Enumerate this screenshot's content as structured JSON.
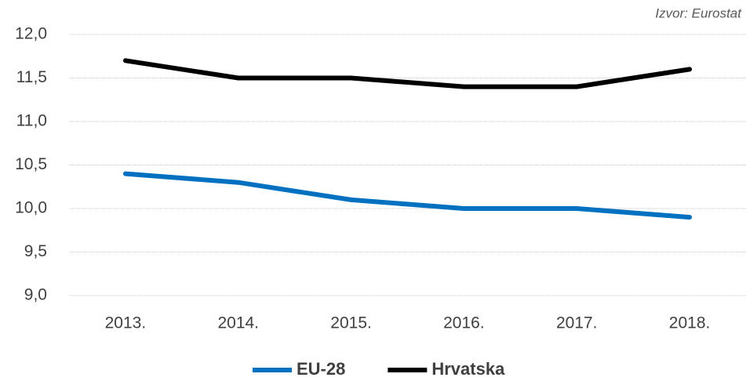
{
  "chart_data": {
    "type": "line",
    "source": "Izvor: Eurostat",
    "categories": [
      "2013.",
      "2014.",
      "2015.",
      "2016.",
      "2017.",
      "2018."
    ],
    "series": [
      {
        "name": "EU-28",
        "color": "#0070c0",
        "values": [
          10.4,
          10.3,
          10.1,
          10.0,
          10.0,
          9.9
        ]
      },
      {
        "name": "Hrvatska",
        "color": "#000000",
        "values": [
          11.7,
          11.5,
          11.5,
          11.4,
          11.4,
          11.6
        ]
      }
    ],
    "ylim": [
      9,
      12
    ],
    "yticks": [
      {
        "value": 9,
        "label": "9,0"
      },
      {
        "value": 9.5,
        "label": "9,5"
      },
      {
        "value": 10,
        "label": "10,0"
      },
      {
        "value": 10.5,
        "label": "10,5"
      },
      {
        "value": 11,
        "label": "11,0"
      },
      {
        "value": 11.5,
        "label": "11,5"
      },
      {
        "value": 12,
        "label": "12,0"
      }
    ],
    "grid": true,
    "legend": "bottom"
  }
}
